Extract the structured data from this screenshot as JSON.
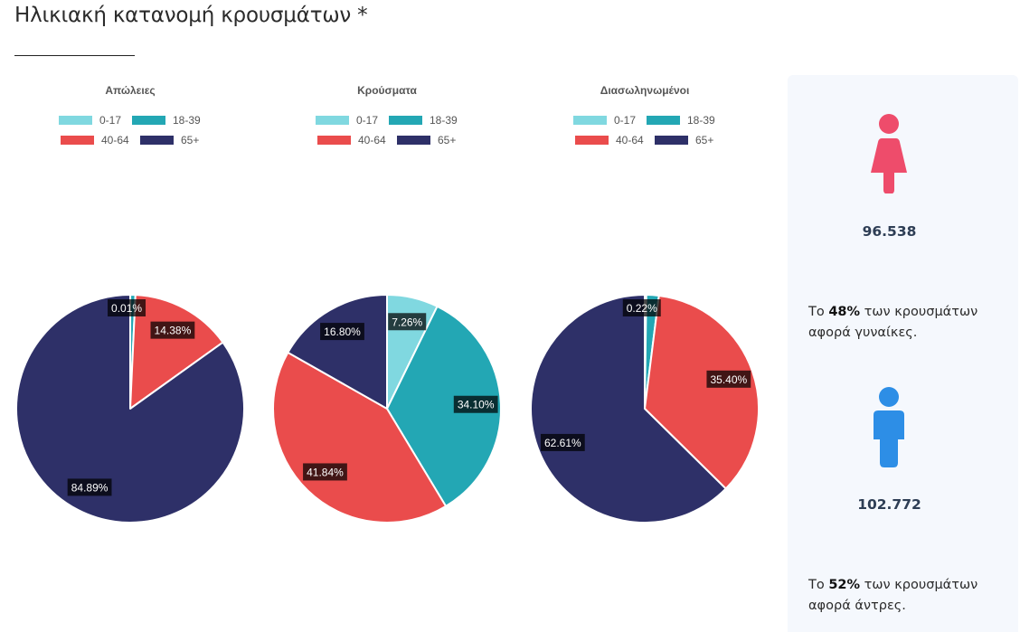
{
  "page": {
    "title": "Ηλικιακή κατανομή κρουσμάτων *"
  },
  "colors": {
    "age_0_17": "#80d8e0",
    "age_18_39": "#23a7b4",
    "age_40_64": "#ea4c4c",
    "age_65_plus": "#2e3068",
    "female": "#ee4c6b",
    "male": "#2d8ee6"
  },
  "chart_data": [
    {
      "type": "pie",
      "title": "Απώλειες",
      "categories": [
        "0-17",
        "18-39",
        "40-64",
        "65+"
      ],
      "values": [
        0.01,
        0.72,
        14.38,
        84.89
      ],
      "labels": [
        "0.01%",
        "",
        "14.38%",
        "84.89%"
      ],
      "legend": "top"
    },
    {
      "type": "pie",
      "title": "Κρούσματα",
      "categories": [
        "0-17",
        "18-39",
        "40-64",
        "65+"
      ],
      "values": [
        7.26,
        34.1,
        41.84,
        16.8
      ],
      "labels": [
        "7.26%",
        "34.10%",
        "41.84%",
        "16.80%"
      ],
      "legend": "top"
    },
    {
      "type": "pie",
      "title": "Διασωληνωμένοι",
      "categories": [
        "0-17",
        "18-39",
        "40-64",
        "65+"
      ],
      "values": [
        0.22,
        1.77,
        35.4,
        62.61
      ],
      "labels": [
        "0.22%",
        "",
        "35.40%",
        "62.61%"
      ],
      "legend": "top"
    }
  ],
  "gender": {
    "female": {
      "icon": "female-icon",
      "count": "96.538",
      "text_prefix": "Το ",
      "percent": "48%",
      "text_suffix": " των κρουσμάτων αφορά γυναίκες."
    },
    "male": {
      "icon": "male-icon",
      "count": "102.772",
      "text_prefix": "Το ",
      "percent": "52%",
      "text_suffix": " των κρουσμάτων αφορά άντρες."
    }
  }
}
